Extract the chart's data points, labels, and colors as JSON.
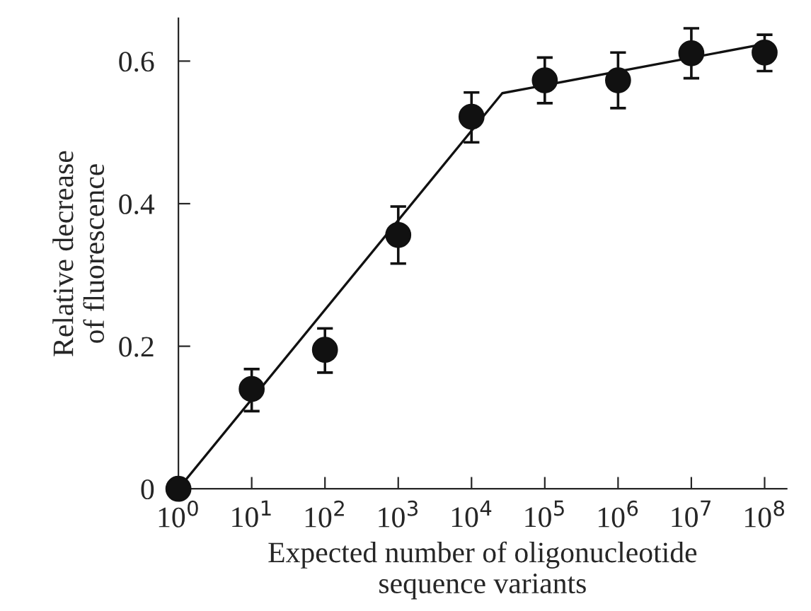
{
  "chart_data": {
    "type": "scatter",
    "xlabel": "Expected number of oligonucleotide\nsequence variants",
    "ylabel": "Relative decrease\nof fluorescence",
    "log": "x",
    "marker": "circle",
    "grid": false,
    "xlim": [
      1,
      200000000
    ],
    "ylim": [
      0,
      0.66
    ],
    "xticks": [
      {
        "value": 1,
        "label": "10$^{0}$"
      },
      {
        "value": 10,
        "label": "10$^{1}$"
      },
      {
        "value": 100,
        "label": "10$^{2}$"
      },
      {
        "value": 1000,
        "label": "10$^{3}$"
      },
      {
        "value": 10000,
        "label": "10$^{4}$"
      },
      {
        "value": 100000,
        "label": "10$^{5}$"
      },
      {
        "value": 1000000,
        "label": "10$^{6}$"
      },
      {
        "value": 10000000,
        "label": "10$^{7}$"
      },
      {
        "value": 100000000,
        "label": "10$^{8}$"
      }
    ],
    "yticks": [
      0,
      {
        "value": 0.2,
        "label": "0.2"
      },
      {
        "value": 0.4,
        "label": "0.4"
      },
      {
        "value": 0.6,
        "label": "0.6"
      }
    ],
    "series": [
      {
        "color": "#111111",
        "x": [
          1,
          10,
          100,
          1000,
          10000,
          100000,
          1000000,
          10000000,
          100000000
        ],
        "values": [
          0,
          0.14,
          0.195,
          0.356,
          0.522,
          0.573,
          0.573,
          0.611,
          0.612
        ],
        "errors": [
          null,
          [
            0.109,
            0.168
          ],
          [
            0.163,
            0.225
          ],
          [
            0.316,
            0.396
          ],
          [
            0.486,
            0.556
          ],
          [
            0.541,
            0.605
          ],
          [
            0.534,
            0.612
          ],
          [
            0.576,
            0.646
          ],
          [
            0.586,
            0.637
          ]
        ]
      },
      {
        "type": "line",
        "color": "#111111",
        "marker": "none",
        "x": [
          1,
          26300,
          100000000
        ],
        "values": [
          0,
          0.555,
          0.624
        ]
      }
    ]
  }
}
